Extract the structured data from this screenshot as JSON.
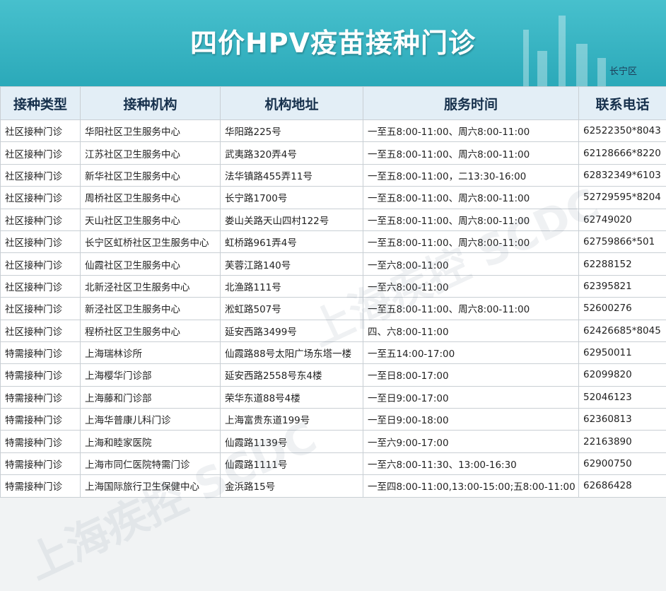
{
  "header": {
    "title": "四价HPV疫苗接种门诊",
    "district": "长宁区",
    "watermark": "上海疾控 SCDC"
  },
  "table": {
    "columns": [
      "接种类型",
      "接种机构",
      "机构地址",
      "服务时间",
      "联系电话"
    ],
    "rows": [
      [
        "社区接种门诊",
        "华阳社区卫生服务中心",
        "华阳路225号",
        "一至五8:00-11:00、周六8:00-11:00",
        "62522350*8043"
      ],
      [
        "社区接种门诊",
        "江苏社区卫生服务中心",
        "武夷路320弄4号",
        "一至五8:00-11:00、周六8:00-11:00",
        "62128666*8220"
      ],
      [
        "社区接种门诊",
        "新华社区卫生服务中心",
        "法华镇路455弄11号",
        "一至五8:00-11:00，二13:30-16:00",
        "62832349*6103"
      ],
      [
        "社区接种门诊",
        "周桥社区卫生服务中心",
        "长宁路1700号",
        "一至五8:00-11:00、周六8:00-11:00",
        "52729595*8204"
      ],
      [
        "社区接种门诊",
        "天山社区卫生服务中心",
        "娄山关路天山四村122号",
        "一至五8:00-11:00、周六8:00-11:00",
        "62749020"
      ],
      [
        "社区接种门诊",
        "长宁区虹桥社区卫生服务中心",
        "虹桥路961弄4号",
        "一至五8:00-11:00、周六8:00-11:00",
        "62759866*501"
      ],
      [
        "社区接种门诊",
        "仙霞社区卫生服务中心",
        "芙蓉江路140号",
        "一至六8:00-11:00",
        "62288152"
      ],
      [
        "社区接种门诊",
        "北新泾社区卫生服务中心",
        "北渔路111号",
        "一至六8:00-11:00",
        "62395821"
      ],
      [
        "社区接种门诊",
        "新泾社区卫生服务中心",
        "淞虹路507号",
        "一至五8:00-11:00、周六8:00-11:00",
        "52600276"
      ],
      [
        "社区接种门诊",
        "程桥社区卫生服务中心",
        "延安西路3499号",
        "四、六8:00-11:00",
        "62426685*8045"
      ],
      [
        "特需接种门诊",
        "上海瑞林诊所",
        "仙霞路88号太阳广场东塔一楼",
        "一至五14:00-17:00",
        "62950011"
      ],
      [
        "特需接种门诊",
        "上海樱华门诊部",
        "延安西路2558号东4楼",
        "一至日8:00-17:00",
        "62099820"
      ],
      [
        "特需接种门诊",
        "上海藤和门诊部",
        "荣华东道88号4楼",
        "一至日9:00-17:00",
        "52046123"
      ],
      [
        "特需接种门诊",
        "上海华普康儿科门诊",
        "上海富贵东道199号",
        "一至日9:00-18:00",
        "62360813"
      ],
      [
        "特需接种门诊",
        "上海和睦家医院",
        "仙霞路1139号",
        "一至六9:00-17:00",
        "22163890"
      ],
      [
        "特需接种门诊",
        "上海市同仁医院特需门诊",
        "仙霞路1111号",
        "一至六8:00-11:30、13:00-16:30",
        "62900750"
      ],
      [
        "特需接种门诊",
        "上海国际旅行卫生保健中心",
        "金浜路15号",
        "一至四8:00-11:00,13:00-15:00;五8:00-11:00",
        "62686428"
      ]
    ]
  }
}
